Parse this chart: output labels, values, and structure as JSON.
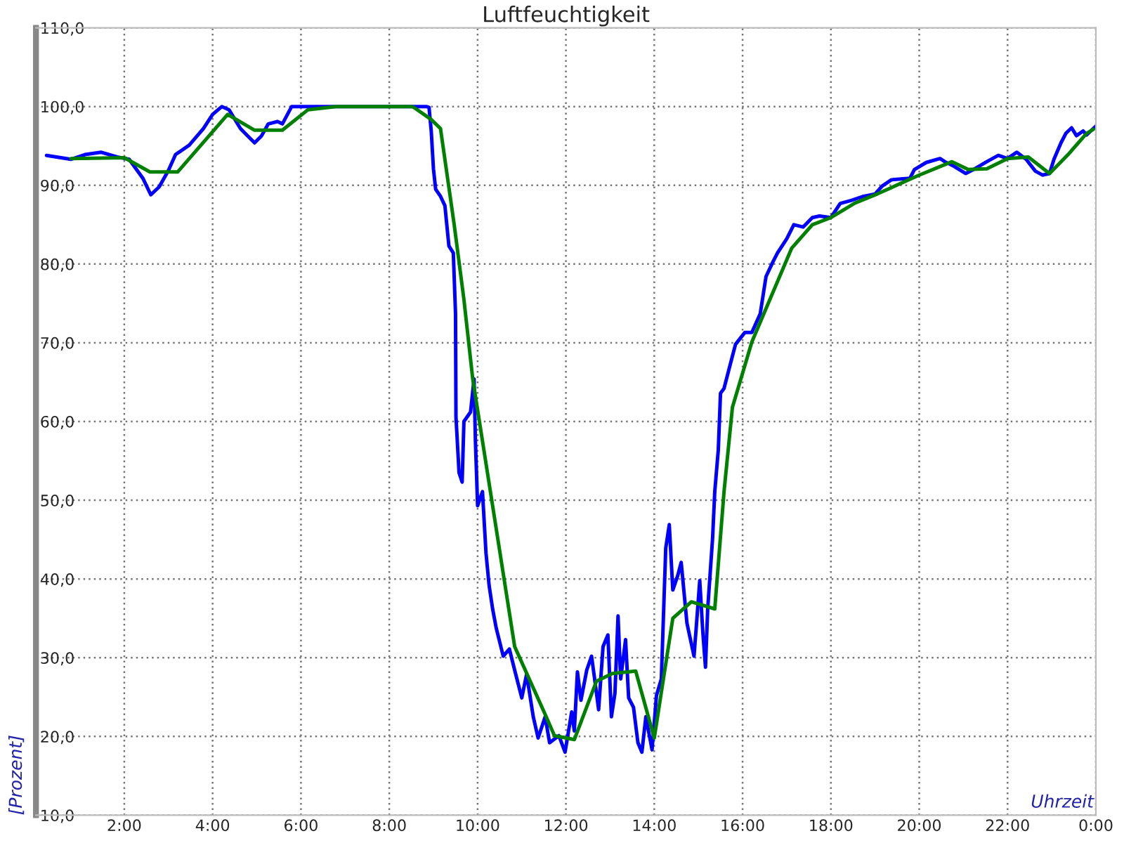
{
  "chart_data": {
    "type": "line",
    "title": "Luftfeuchtigkeit",
    "xlabel": "Uhrzeit",
    "ylabel": "[Prozent]",
    "xlim": [
      0,
      24
    ],
    "ylim": [
      10,
      110
    ],
    "xticks": [
      {
        "value": 0,
        "label": null
      },
      {
        "value": 2,
        "label": "2:00"
      },
      {
        "value": 4,
        "label": "4:00"
      },
      {
        "value": 6,
        "label": "6:00"
      },
      {
        "value": 8,
        "label": "8:00"
      },
      {
        "value": 10,
        "label": "10:00"
      },
      {
        "value": 12,
        "label": "12:00"
      },
      {
        "value": 14,
        "label": "14:00"
      },
      {
        "value": 16,
        "label": "16:00"
      },
      {
        "value": 18,
        "label": "18:00"
      },
      {
        "value": 20,
        "label": "20:00"
      },
      {
        "value": 22,
        "label": "22:00"
      },
      {
        "value": 24,
        "label": "0:00"
      }
    ],
    "yticks": [
      {
        "value": 10,
        "label": "10,0"
      },
      {
        "value": 20,
        "label": "20,0"
      },
      {
        "value": 30,
        "label": "30,0"
      },
      {
        "value": 40,
        "label": "40,0"
      },
      {
        "value": 50,
        "label": "50,0"
      },
      {
        "value": 60,
        "label": "60,0"
      },
      {
        "value": 70,
        "label": "70,0"
      },
      {
        "value": 80,
        "label": "80,0"
      },
      {
        "value": 90,
        "label": "90,0"
      },
      {
        "value": 100,
        "label": "100,0"
      },
      {
        "value": 110,
        "label": "110,0"
      }
    ],
    "grid": true,
    "marker": "none",
    "line_style": "solid",
    "series": [
      {
        "color": "#0000ff",
        "x": [
          0.24,
          0.79,
          1.11,
          1.47,
          1.84,
          2.11,
          2.42,
          2.6,
          2.79,
          3.0,
          3.16,
          3.47,
          3.79,
          4.0,
          4.21,
          4.37,
          4.63,
          4.79,
          4.95,
          5.11,
          5.26,
          5.47,
          5.58,
          5.79,
          6.79,
          8.84,
          8.9,
          8.95,
          9.0,
          9.05,
          9.16,
          9.26,
          9.35,
          9.45,
          9.5,
          9.51,
          9.58,
          9.65,
          9.69,
          9.84,
          9.92,
          9.95,
          10.0,
          10.11,
          10.19,
          10.26,
          10.34,
          10.42,
          10.58,
          10.72,
          10.84,
          11.0,
          11.11,
          11.26,
          11.37,
          11.53,
          11.63,
          11.84,
          11.98,
          12.13,
          12.19,
          12.26,
          12.34,
          12.47,
          12.58,
          12.65,
          12.74,
          12.84,
          12.95,
          13.03,
          13.11,
          13.18,
          13.24,
          13.35,
          13.42,
          13.53,
          13.63,
          13.72,
          13.81,
          13.95,
          14.05,
          14.16,
          14.26,
          14.34,
          14.42,
          14.53,
          14.61,
          14.74,
          14.9,
          14.95,
          15.03,
          15.1,
          15.16,
          15.21,
          15.32,
          15.37,
          15.45,
          15.5,
          15.58,
          15.69,
          15.84,
          16.05,
          16.21,
          16.4,
          16.53,
          16.68,
          16.79,
          17.0,
          17.16,
          17.37,
          17.58,
          17.74,
          18.0,
          18.21,
          18.47,
          18.74,
          19.0,
          19.16,
          19.37,
          19.79,
          19.89,
          20.16,
          20.47,
          20.58,
          20.79,
          21.05,
          21.26,
          21.53,
          21.79,
          22.0,
          22.21,
          22.42,
          22.63,
          22.79,
          22.95,
          23.05,
          23.21,
          23.32,
          23.45,
          23.56,
          23.71,
          23.79,
          24.0
        ],
        "values": [
          93.8,
          93.3,
          93.9,
          94.2,
          93.6,
          93.3,
          90.9,
          88.8,
          89.8,
          91.9,
          93.9,
          95.1,
          97.2,
          99.0,
          100,
          99.6,
          97.2,
          96.3,
          95.4,
          96.3,
          97.8,
          98.1,
          97.8,
          100,
          100,
          100,
          99.9,
          96.9,
          92.1,
          89.5,
          88.6,
          87.4,
          82.3,
          81.4,
          73.7,
          60.6,
          53.5,
          52.3,
          60.0,
          61.2,
          65.4,
          57.6,
          49.3,
          51.1,
          43.3,
          39.2,
          36.2,
          33.8,
          30.2,
          31.1,
          28.4,
          24.9,
          27.9,
          22.5,
          19.8,
          22.5,
          19.2,
          20.1,
          18.0,
          23.1,
          20.7,
          28.2,
          24.6,
          28.4,
          30.2,
          27.3,
          23.4,
          31.4,
          32.9,
          22.5,
          25.5,
          35.3,
          27.3,
          32.3,
          24.9,
          23.7,
          19.2,
          18.0,
          22.5,
          18.3,
          25.2,
          27.3,
          43.9,
          46.9,
          38.6,
          40.4,
          42.1,
          34.4,
          30.2,
          33.8,
          39.8,
          33.2,
          28.8,
          36.2,
          45.1,
          51.1,
          56.4,
          63.6,
          64.2,
          66.6,
          69.8,
          71.3,
          71.3,
          73.7,
          78.4,
          80.2,
          81.4,
          83.2,
          85.0,
          84.7,
          85.9,
          86.1,
          85.9,
          87.7,
          88.1,
          88.6,
          88.9,
          89.9,
          90.7,
          90.9,
          92.0,
          92.9,
          93.4,
          93.0,
          92.4,
          91.5,
          92.1,
          93.0,
          93.8,
          93.4,
          94.2,
          93.3,
          91.8,
          91.3,
          91.5,
          93.3,
          95.4,
          96.6,
          97.3,
          96.3,
          96.9,
          96.4,
          97.5
        ]
      },
      {
        "color": "#008000",
        "x": [
          0.79,
          2.0,
          2.58,
          3.21,
          4.34,
          4.95,
          5.58,
          6.16,
          6.79,
          8.53,
          8.94,
          9.16,
          9.47,
          9.69,
          9.89,
          10.84,
          11.53,
          11.74,
          12.19,
          12.69,
          13.05,
          13.58,
          14.0,
          14.42,
          14.84,
          15.37,
          15.58,
          15.77,
          16.21,
          17.11,
          17.58,
          18.0,
          18.53,
          19.05,
          20.0,
          20.74,
          21.11,
          21.53,
          22.0,
          22.47,
          22.95,
          23.37,
          23.79,
          23.94
        ],
        "values": [
          93.4,
          93.5,
          91.7,
          91.7,
          99.0,
          97.0,
          97.0,
          99.6,
          100,
          100,
          98.4,
          97.2,
          85.0,
          75.5,
          65.4,
          31.4,
          22.8,
          20.1,
          19.6,
          27.0,
          28.0,
          28.3,
          19.8,
          35.0,
          37.1,
          36.2,
          51.1,
          61.8,
          70.1,
          82.0,
          85.0,
          85.9,
          87.7,
          88.9,
          91.3,
          93.0,
          92.0,
          92.1,
          93.4,
          93.6,
          91.5,
          93.9,
          96.6,
          97.1
        ]
      }
    ]
  }
}
